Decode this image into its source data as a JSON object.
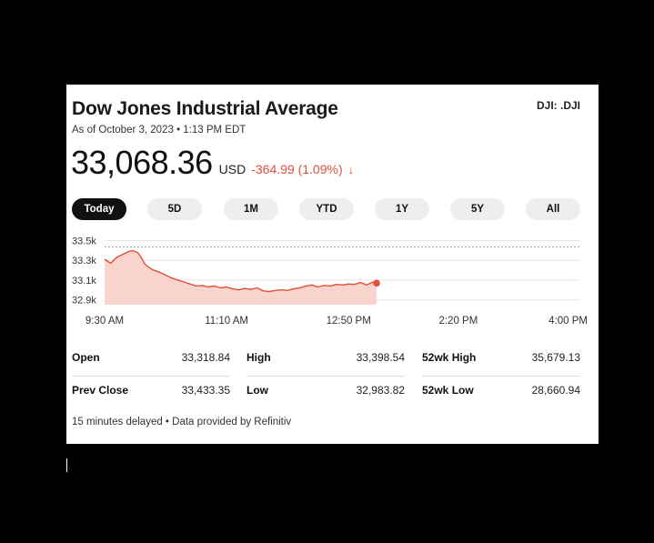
{
  "header": {
    "title": "Dow Jones Industrial Average",
    "symbol": "DJI: .DJI",
    "as_of": "As of October 3, 2023 • 1:13 PM EDT"
  },
  "quote": {
    "price": "33,068.36",
    "currency": "USD",
    "change": "-364.99 (1.09%)",
    "direction_icon": "arrow-down-icon",
    "down_color": "#e0503a"
  },
  "tabs": [
    {
      "label": "Today",
      "active": true
    },
    {
      "label": "5D",
      "active": false
    },
    {
      "label": "1M",
      "active": false
    },
    {
      "label": "YTD",
      "active": false
    },
    {
      "label": "1Y",
      "active": false
    },
    {
      "label": "5Y",
      "active": false
    },
    {
      "label": "All",
      "active": false
    }
  ],
  "chart_data": {
    "type": "area",
    "x_ticks": [
      "9:30 AM",
      "11:10 AM",
      "12:50 PM",
      "2:20 PM",
      "4:00 PM"
    ],
    "y_ticks": [
      "33.5k",
      "33.3k",
      "33.1k",
      "32.9k"
    ],
    "ylim": [
      32850,
      33550
    ],
    "previous_close": 33433.35,
    "x_unit": "minutes since 9:30 AM",
    "x": [
      0,
      5,
      10,
      15,
      20,
      23,
      27,
      30,
      33,
      36,
      40,
      45,
      50,
      55,
      60,
      65,
      70,
      75,
      80,
      85,
      90,
      95,
      100,
      105,
      110,
      115,
      120,
      125,
      130,
      135,
      140,
      145,
      150,
      155,
      160,
      165,
      170,
      175,
      180,
      185,
      190,
      195,
      200,
      205,
      210,
      215,
      220,
      223
    ],
    "values": [
      33310,
      33270,
      33330,
      33360,
      33390,
      33398,
      33380,
      33330,
      33260,
      33230,
      33200,
      33180,
      33150,
      33120,
      33100,
      33080,
      33060,
      33040,
      33045,
      33030,
      33040,
      33020,
      33030,
      33010,
      33000,
      33015,
      33005,
      33020,
      32990,
      32984,
      32995,
      33000,
      32995,
      33010,
      33020,
      33040,
      33050,
      33030,
      33045,
      33040,
      33055,
      33050,
      33060,
      33055,
      33075,
      33050,
      33080,
      33068
    ],
    "line_color": "#e0503a",
    "fill_color": "#f9d4cc",
    "grid": true
  },
  "stats": {
    "open_label": "Open",
    "open_value": "33,318.84",
    "high_label": "High",
    "high_value": "33,398.54",
    "wk52high_label": "52wk High",
    "wk52high_value": "35,679.13",
    "prev_close_label": "Prev Close",
    "prev_close_value": "33,433.35",
    "low_label": "Low",
    "low_value": "32,983.82",
    "wk52low_label": "52wk Low",
    "wk52low_value": "28,660.94"
  },
  "footer": "15 minutes delayed • Data provided by Refinitiv"
}
